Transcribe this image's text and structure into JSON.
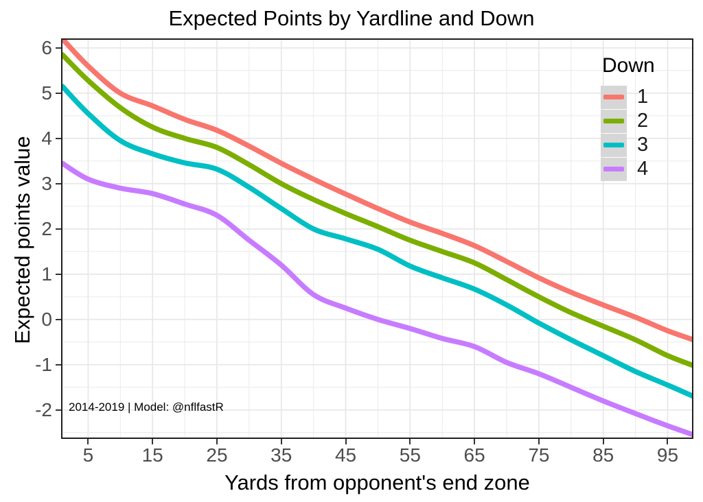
{
  "title": "Expected Points by Yardline and Down",
  "x_axis": {
    "label": "Yards from opponent's end zone"
  },
  "y_axis": {
    "label": "Expected points value"
  },
  "annotation": "2014-2019 | Model: @nflfastR",
  "legend": {
    "title": "Down",
    "items": [
      {
        "label": "1",
        "color": "#F8766D"
      },
      {
        "label": "2",
        "color": "#7CAE00"
      },
      {
        "label": "3",
        "color": "#00BFC4"
      },
      {
        "label": "4",
        "color": "#C77CFF"
      }
    ]
  },
  "colors": {
    "down1": "#F8766D",
    "down2": "#7CAE00",
    "down3": "#00BFC4",
    "down4": "#C77CFF",
    "grid": "#e8e8e8",
    "panel_border": "#1f1f1f",
    "axis_text": "#4d4d4d",
    "legend_key_bg": "#d6d6d6"
  },
  "chart_data": {
    "type": "line",
    "title": "Expected Points by Yardline and Down",
    "xlabel": "Yards from opponent's end zone",
    "ylabel": "Expected points value",
    "xlim": [
      0.8,
      99.0
    ],
    "ylim": [
      -2.64,
      6.21
    ],
    "x_ticks": [
      5,
      15,
      25,
      35,
      45,
      55,
      65,
      75,
      85,
      95
    ],
    "x_minor": [
      10,
      20,
      30,
      40,
      50,
      60,
      70,
      80,
      90
    ],
    "y_ticks": [
      -2,
      -1,
      0,
      1,
      2,
      3,
      4,
      5,
      6
    ],
    "y_minor": [
      -2.5,
      -1.5,
      -0.5,
      0.5,
      1.5,
      2.5,
      3.5,
      4.5,
      5.5
    ],
    "grid": true,
    "legend_position": "top-right-inside",
    "x": [
      1,
      5,
      10,
      15,
      20,
      25,
      30,
      35,
      40,
      45,
      50,
      55,
      60,
      65,
      70,
      75,
      80,
      85,
      90,
      95,
      99
    ],
    "series": [
      {
        "name": "1",
        "color": "#F8766D",
        "values": [
          6.2,
          5.6,
          5.0,
          4.72,
          4.42,
          4.18,
          3.83,
          3.45,
          3.1,
          2.77,
          2.45,
          2.15,
          1.9,
          1.63,
          1.28,
          0.92,
          0.6,
          0.32,
          0.05,
          -0.25,
          -0.45
        ]
      },
      {
        "name": "2",
        "color": "#7CAE00",
        "values": [
          5.85,
          5.28,
          4.68,
          4.25,
          4.0,
          3.8,
          3.42,
          3.0,
          2.65,
          2.34,
          2.05,
          1.75,
          1.5,
          1.25,
          0.88,
          0.5,
          0.15,
          -0.15,
          -0.45,
          -0.8,
          -1.02
        ]
      },
      {
        "name": "3",
        "color": "#00BFC4",
        "values": [
          5.15,
          4.55,
          3.95,
          3.66,
          3.46,
          3.32,
          2.92,
          2.45,
          2.0,
          1.78,
          1.55,
          1.18,
          0.92,
          0.67,
          0.32,
          -0.08,
          -0.45,
          -0.8,
          -1.15,
          -1.45,
          -1.7
        ]
      },
      {
        "name": "4",
        "color": "#C77CFF",
        "values": [
          3.45,
          3.1,
          2.9,
          2.78,
          2.55,
          2.3,
          1.75,
          1.2,
          0.55,
          0.25,
          0.0,
          -0.2,
          -0.42,
          -0.6,
          -0.95,
          -1.2,
          -1.5,
          -1.8,
          -2.08,
          -2.35,
          -2.55
        ]
      }
    ]
  }
}
